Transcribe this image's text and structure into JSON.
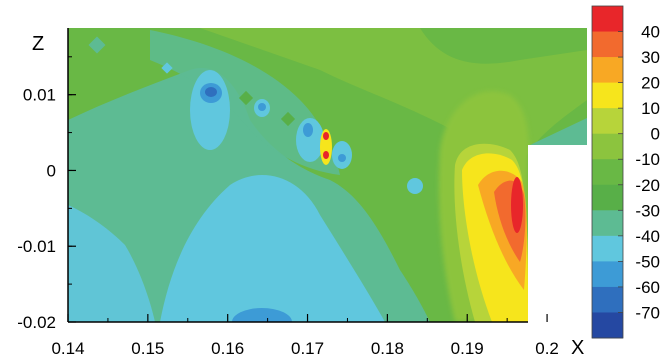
{
  "chart_data": {
    "type": "contour",
    "xlabel": "X",
    "ylabel": "Z",
    "xlim": [
      0.14,
      0.205
    ],
    "ylim": [
      -0.02,
      0.0188
    ],
    "x_ticks": [
      0.14,
      0.15,
      0.16,
      0.17,
      0.18,
      0.19,
      0.2
    ],
    "x_tick_labels": [
      "0.14",
      "0.15",
      "0.16",
      "0.17",
      "0.18",
      "0.19",
      "0.2"
    ],
    "y_ticks": [
      -0.02,
      -0.01,
      0,
      0.01
    ],
    "y_tick_labels": [
      "-0.02",
      "-0.01",
      "0",
      "0.01"
    ],
    "colorbar": {
      "levels": [
        40,
        30,
        20,
        10,
        0,
        -10,
        -20,
        -30,
        -40,
        -50,
        -60,
        -70
      ],
      "labels": [
        "40",
        "30",
        "20",
        "10",
        "0",
        "-10",
        "-20",
        "-30",
        "-40",
        "-50",
        "-60",
        "-70"
      ],
      "colors": [
        "#e8262a",
        "#f26a2e",
        "#f8a824",
        "#f6e51c",
        "#b7d43a",
        "#8cc43e",
        "#69b845",
        "#58af48",
        "#5dbb93",
        "#60c7de",
        "#3d9bd6",
        "#2f6fbe",
        "#2548a2"
      ]
    },
    "blank_region": {
      "x": [
        0.2005,
        0.205
      ],
      "z": [
        -0.02,
        0.0033
      ]
    }
  }
}
